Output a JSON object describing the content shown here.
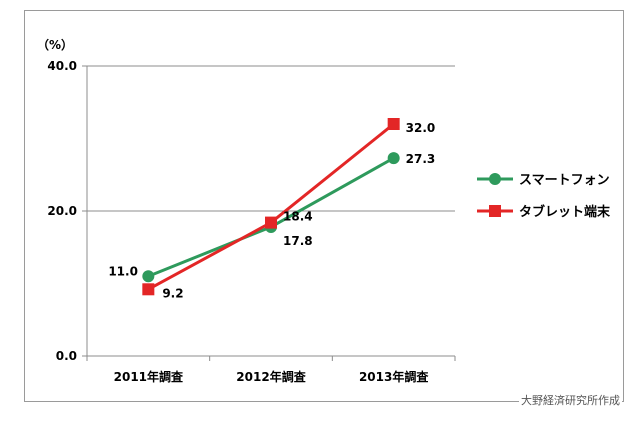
{
  "chart_data": {
    "type": "line",
    "title": "",
    "unit_label": "（%）",
    "categories": [
      "2011年調査",
      "2012年調査",
      "2013年調査"
    ],
    "ylim": [
      0,
      40
    ],
    "y_ticks": [
      "0.0",
      "20.0",
      "40.0"
    ],
    "grid": true,
    "legend_position": "right",
    "series": [
      {
        "name": "スマートフォン",
        "values": [
          11.0,
          17.8,
          27.3
        ],
        "labels": [
          "11.0",
          "17.8",
          "27.3"
        ],
        "color": "#2e9a5c",
        "marker": "circle"
      },
      {
        "name": "タブレット端末",
        "values": [
          9.2,
          18.4,
          32.0
        ],
        "labels": [
          "9.2",
          "18.4",
          "32.0"
        ],
        "color": "#e32626",
        "marker": "square"
      }
    ]
  },
  "source": "大野経済研究所作成"
}
